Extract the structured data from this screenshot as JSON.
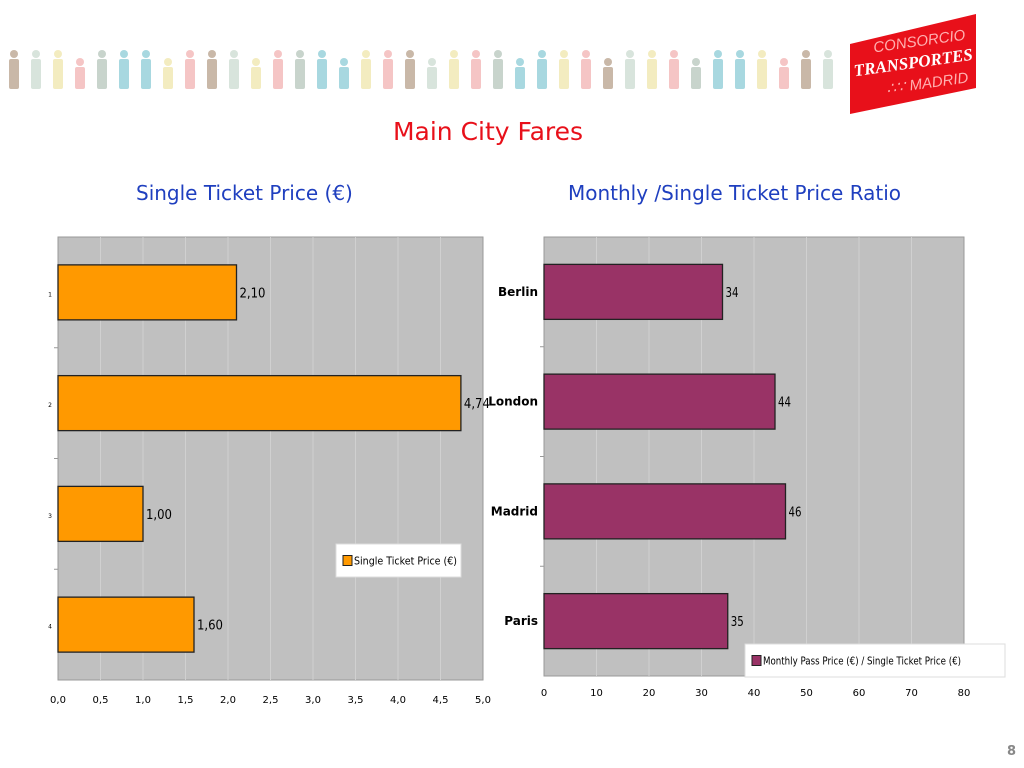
{
  "header": {
    "logo_text": [
      "CONSORCIO",
      "TRANSPORTES",
      "MADRID"
    ],
    "logo_color": "#e8101a"
  },
  "slide": {
    "title": "Main City Fares",
    "page_number": "8"
  },
  "chart_data": [
    {
      "type": "bar",
      "orientation": "horizontal",
      "title": "Single Ticket Price (€)",
      "categories": [
        "1",
        "2",
        "3",
        "4"
      ],
      "values": [
        2.1,
        4.74,
        1.0,
        1.6
      ],
      "data_labels": [
        "2,10",
        "4,74",
        "1,00",
        "1,60"
      ],
      "xlim": [
        0,
        5
      ],
      "xticks": [
        "0,0",
        "0,5",
        "1,0",
        "1,5",
        "2,0",
        "2,5",
        "3,0",
        "3,5",
        "4,0",
        "4,5",
        "5,0"
      ],
      "series_name": "Single Ticket Price (€)",
      "color": "#ff9900",
      "grid": true,
      "legend": "bottom-right",
      "plot_bg": "#c0c0c0"
    },
    {
      "type": "bar",
      "orientation": "horizontal",
      "title": "Monthly /Single Ticket Price Ratio",
      "categories": [
        "Berlin",
        "London",
        "Madrid",
        "Paris"
      ],
      "values": [
        34,
        44,
        46,
        35
      ],
      "data_labels": [
        "34",
        "44",
        "46",
        "35"
      ],
      "xlim": [
        0,
        80
      ],
      "xticks": [
        "0",
        "10",
        "20",
        "30",
        "40",
        "50",
        "60",
        "70",
        "80"
      ],
      "series_name": "Monthly Pass Price (€) / Single Ticket Price (€)",
      "color": "#993366",
      "grid": true,
      "legend": "bottom-right",
      "plot_bg": "#c0c0c0"
    }
  ]
}
